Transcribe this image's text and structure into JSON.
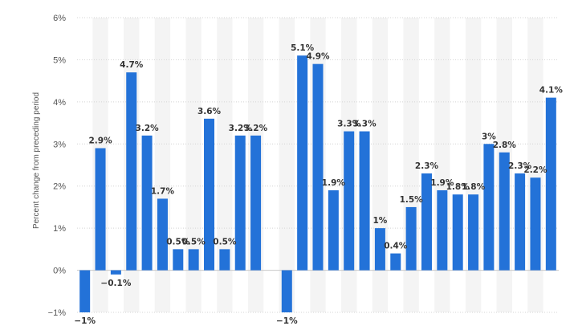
{
  "chart_data": {
    "type": "bar",
    "title": "",
    "xlabel": "",
    "ylabel": "Percent change from preceding period",
    "ylim": [
      -1,
      6
    ],
    "y_ticks": [
      "−1%",
      "0%",
      "1%",
      "2%",
      "3%",
      "4%",
      "5%",
      "6%"
    ],
    "grid": true,
    "color": "#2372d8",
    "values": [
      -1,
      2.9,
      -0.1,
      4.7,
      3.2,
      1.7,
      0.5,
      0.5,
      3.6,
      0.5,
      3.2,
      3.2,
      null,
      -1,
      5.1,
      4.9,
      1.9,
      3.3,
      3.3,
      1,
      0.4,
      1.5,
      2.3,
      1.9,
      1.8,
      1.8,
      3,
      2.8,
      2.3,
      2.2,
      4.1
    ],
    "labels": [
      "−1%",
      "2.9%",
      "−0.1%",
      "4.7%",
      "3.2%",
      "1.7%",
      "0.5%",
      "0.5%",
      "3.6%",
      "0.5%",
      "3.2%",
      "3.2%",
      "",
      "−1%",
      "5.1%",
      "4.9%",
      "1.9%",
      "3.3%",
      "3.3%",
      "1%",
      "0.4%",
      "1.5%",
      "2.3%",
      "1.9%",
      "1.8%",
      "1.8%",
      "3%",
      "2.8%",
      "2.3%",
      "2.2%",
      "4.1%"
    ]
  }
}
